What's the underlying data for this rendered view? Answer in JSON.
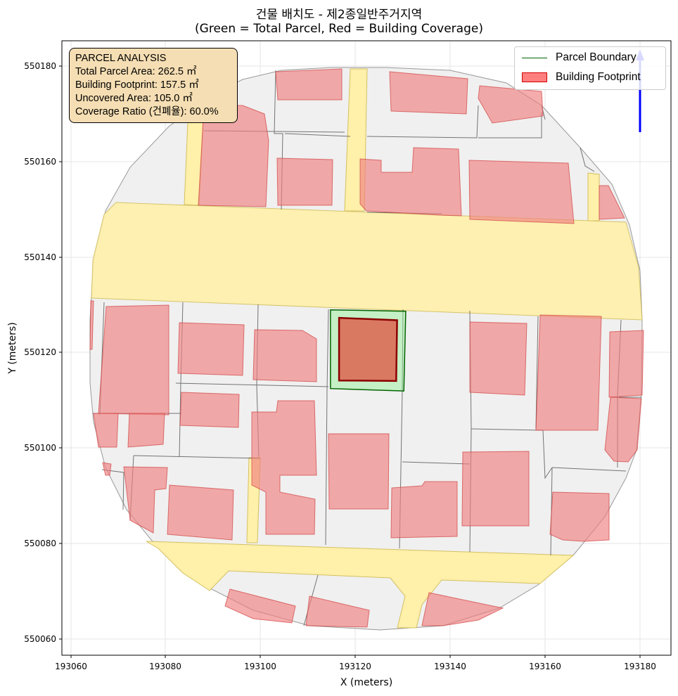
{
  "title": {
    "line1": "건물 배치도 - 제2종일반주거지역",
    "line2": "(Green = Total Parcel, Red = Building Coverage)"
  },
  "axes": {
    "xlabel": "X (meters)",
    "ylabel": "Y (meters)",
    "xlim": [
      193059,
      193186
    ],
    "ylim": [
      550056.5,
      550186
    ],
    "xticks": [
      "193060",
      "193080",
      "193100",
      "193120",
      "193140",
      "193160",
      "193180"
    ],
    "yticks": [
      "550060",
      "550080",
      "550100",
      "550120",
      "550140",
      "550160",
      "550180"
    ],
    "grid": true
  },
  "info": {
    "heading": "PARCEL ANALYSIS",
    "total_area": "Total Parcel Area: 262.5 ㎡",
    "footprint": "Building Footprint: 157.5 ㎡",
    "uncovered": "Uncovered Area: 105.0 ㎡",
    "coverage": "Coverage Ratio (건폐율): 60.0%"
  },
  "legend": {
    "placement": "top-right",
    "parcel_label": "Parcel Boundary",
    "building_label": "Building Footprint"
  },
  "colors": {
    "map_background": "#f0f0f0",
    "road": "#fff0aa",
    "building": "#f08080",
    "parcel_fill": "#90ee90",
    "parcel_edge": "#006400",
    "target_building": "#dc6450",
    "target_edge": "#8b0000",
    "north_arrow": "#0000ff",
    "info_box": "#f5deb3"
  },
  "target_parcel": {
    "polygon": [
      [
        193115,
        550129.3
      ],
      [
        193130.7,
        550129
      ],
      [
        193130.3,
        550112.2
      ],
      [
        193115,
        550112.7
      ]
    ]
  },
  "target_building": {
    "polygon": [
      [
        193116.8,
        550127.6
      ],
      [
        193128.9,
        550127.1
      ],
      [
        193128.7,
        550114.3
      ],
      [
        193116.8,
        550114.4
      ]
    ]
  }
}
